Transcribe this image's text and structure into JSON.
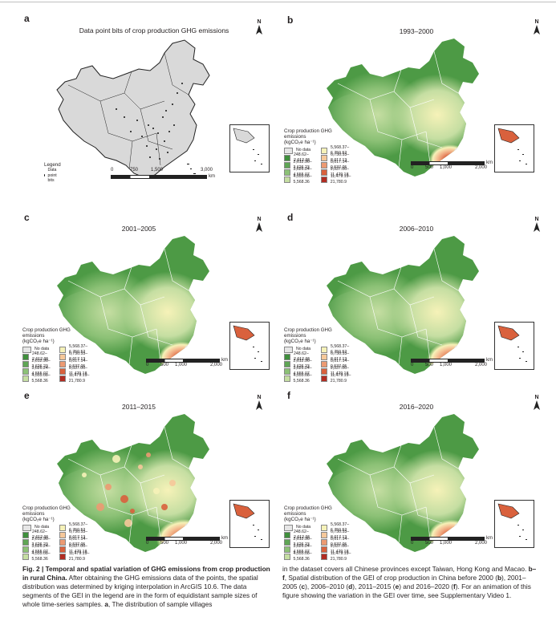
{
  "panels": [
    {
      "label": "a",
      "title": "Data point bits of crop production GHG emissions"
    },
    {
      "label": "b",
      "title": "1993–2000"
    },
    {
      "label": "c",
      "title": "2001–2005"
    },
    {
      "label": "d",
      "title": "2006–2010"
    },
    {
      "label": "e",
      "title": "2011–2015"
    },
    {
      "label": "f",
      "title": "2016–2020"
    }
  ],
  "north_label": "N",
  "legend_a": {
    "title": "Legend",
    "item": "Data point bits"
  },
  "scale_a": {
    "ticks": [
      "0",
      "750",
      "1,500",
      "3,000"
    ],
    "unit": "km"
  },
  "scale": {
    "ticks": [
      "0",
      "500",
      "1,000",
      "2,000"
    ],
    "unit": "km"
  },
  "legend": {
    "title": "Crop production GHG emissions",
    "unit": "(kgCO₂e ha⁻¹)",
    "left": [
      {
        "label": "No data",
        "color": "#e6e6e6"
      },
      {
        "label": "248.62–2,612.95",
        "color": "#3f8f3c"
      },
      {
        "label": "2,612.96–3,626.23",
        "color": "#5fa555"
      },
      {
        "label": "3,626.24–4,555.07",
        "color": "#8cc176"
      },
      {
        "label": "4,555.08–5,568.36",
        "color": "#c5dea2"
      }
    ],
    "right": [
      {
        "label": "5,568.37–6,750.52",
        "color": "#f6f2b8"
      },
      {
        "label": "6,750.53–8,017.13",
        "color": "#f6c89a"
      },
      {
        "label": "8,017.14–9,537.05",
        "color": "#ec9a72"
      },
      {
        "label": "9,537.06–11,479.18",
        "color": "#d9613d"
      },
      {
        "label": "11,479.19–21,780.9",
        "color": "#b22c22"
      }
    ]
  },
  "caption": {
    "fig": "Fig. 2 | Temporal and spatial variation of GHG emissions from crop production in rural China.",
    "left_rest": " After obtaining the GHG emissions data of the points, the spatial distribution was determined by kriging interpolation in ArcGIS 10.6. The data segments of the GEI in the legend are in the form of equidistant sample sizes of whole time-series samples. ",
    "a_label": "a",
    "left_end": ", The distribution of sample villages",
    "right_start": "in the dataset covers all Chinese provinces except Taiwan, Hong Kong and Macao. ",
    "bf_label": "b–f",
    "right_mid": ", Spatial distribution of the GEI of crop production in China before 2000 (",
    "b": "b",
    "t1": "), 2001–2005 (",
    "c": "c",
    "t2": "), 2006–2010 (",
    "d": "d",
    "t3": "), 2011–2015 (",
    "e": "e",
    "t4": ") and 2016–2020 (",
    "f": "f",
    "right_end": "). For an animation of this figure showing the variation in the GEI over time, see Supplementary Video 1."
  }
}
